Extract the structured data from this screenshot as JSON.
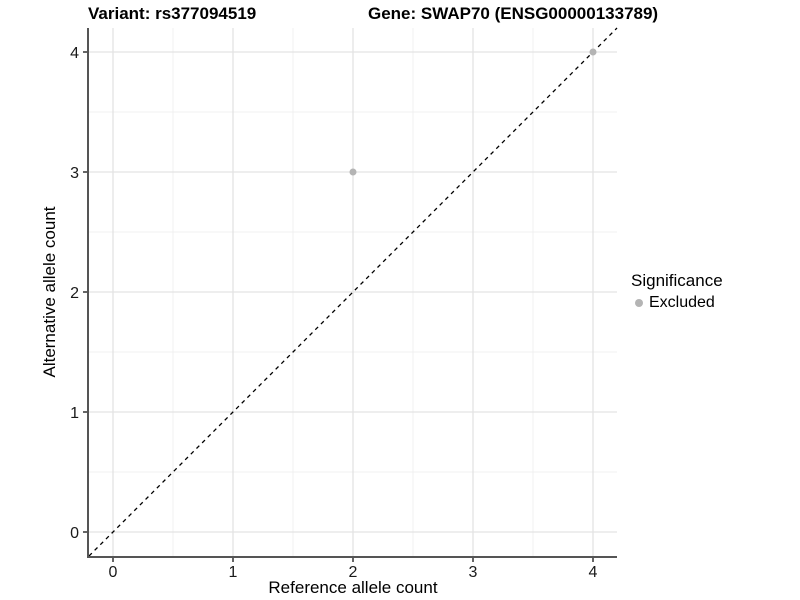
{
  "chart_data": {
    "type": "scatter",
    "title_left": "Variant: rs377094519",
    "title_right": "Gene: SWAP70 (ENSG00000133789)",
    "xlabel": "Reference allele count",
    "ylabel": "Alternative allele count",
    "xlim": [
      -0.2,
      4.2
    ],
    "ylim": [
      -0.2,
      4.2
    ],
    "x_ticks": [
      0,
      1,
      2,
      3,
      4
    ],
    "y_ticks": [
      0,
      1,
      2,
      3,
      4
    ],
    "grid": "major+minor",
    "minor_grid_step": 0.5,
    "points": [
      {
        "x": 2,
        "y": 3,
        "significance": "Excluded"
      },
      {
        "x": 4,
        "y": 4,
        "significance": "Excluded"
      }
    ],
    "identity_line": {
      "slope": 1,
      "intercept": 0,
      "style": "dashed",
      "color": "#000000"
    },
    "legend": {
      "title": "Significance",
      "position": "right",
      "items": [
        {
          "label": "Excluded",
          "color": "#b4b4b4"
        }
      ]
    },
    "colors": {
      "point": "#b4b4b4",
      "grid_major": "#e3e3e3",
      "grid_minor": "#f0f0f0",
      "axis_line": "#555555",
      "tick": "#333333",
      "tick_label": "#1a1a1a",
      "background": "#ffffff"
    }
  }
}
